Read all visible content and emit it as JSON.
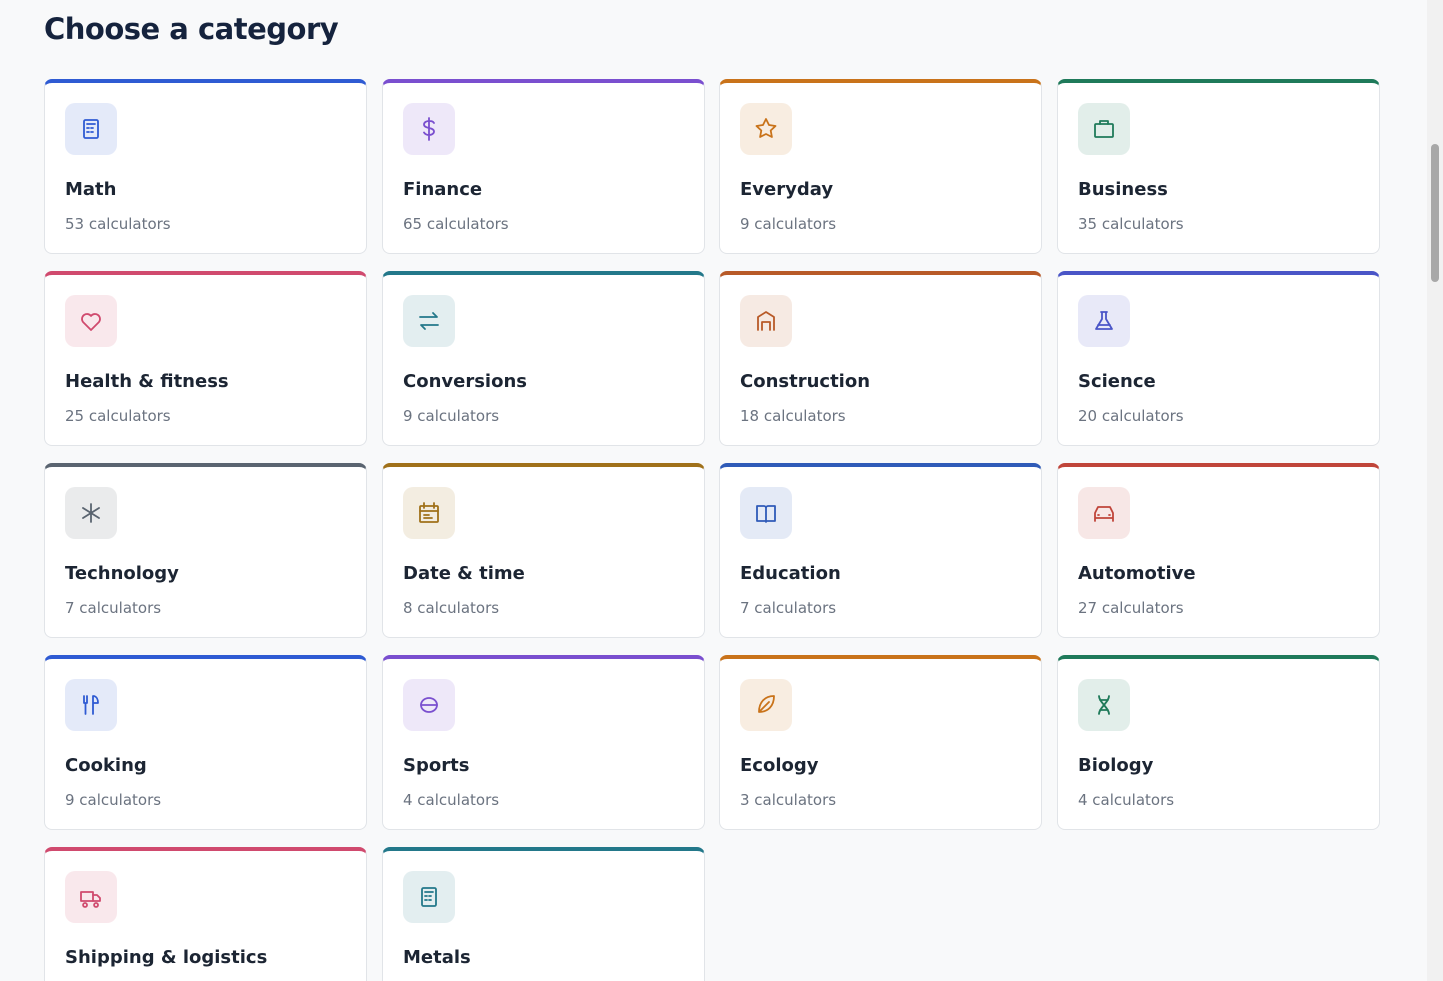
{
  "header": {
    "title": "Choose a category"
  },
  "categories": [
    {
      "name": "Math",
      "count": "53 calculators",
      "color": "#2f5bd3"
    },
    {
      "name": "Finance",
      "count": "65 calculators",
      "color": "#7a4fcf"
    },
    {
      "name": "Everyday",
      "count": "9 calculators",
      "color": "#c9731a"
    },
    {
      "name": "Business",
      "count": "35 calculators",
      "color": "#1f7a5a"
    },
    {
      "name": "Health & fitness",
      "count": "25 calculators",
      "color": "#d04a6e"
    },
    {
      "name": "Conversions",
      "count": "9 calculators",
      "color": "#23788a"
    },
    {
      "name": "Construction",
      "count": "18 calculators",
      "color": "#b85a28"
    },
    {
      "name": "Science",
      "count": "20 calculators",
      "color": "#4a55c7"
    },
    {
      "name": "Technology",
      "count": "7 calculators",
      "color": "#5a6470"
    },
    {
      "name": "Date & time",
      "count": "8 calculators",
      "color": "#a0711a"
    },
    {
      "name": "Education",
      "count": "7 calculators",
      "color": "#2f5bb8"
    },
    {
      "name": "Automotive",
      "count": "27 calculators",
      "color": "#c0453a"
    },
    {
      "name": "Cooking",
      "count": "9 calculators",
      "color": "#2f5bd3"
    },
    {
      "name": "Sports",
      "count": "4 calculators",
      "color": "#7a4fcf"
    },
    {
      "name": "Ecology",
      "count": "3 calculators",
      "color": "#c9731a"
    },
    {
      "name": "Biology",
      "count": "4 calculators",
      "color": "#1f7a5a"
    },
    {
      "name": "Shipping & logistics",
      "color": "#d04a6e"
    },
    {
      "name": "Metals",
      "color": "#23788a"
    }
  ]
}
